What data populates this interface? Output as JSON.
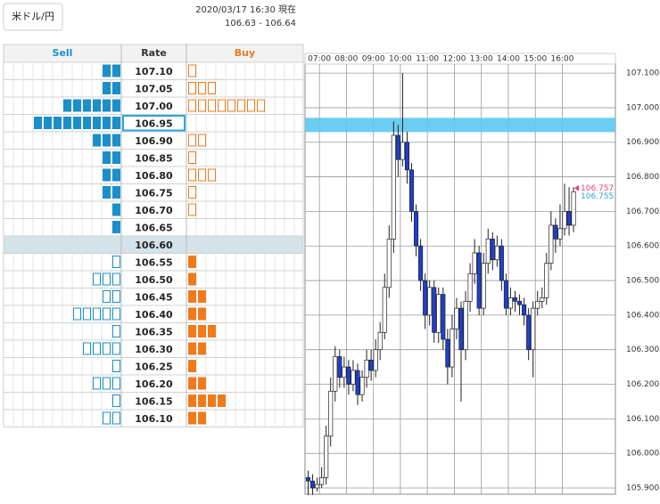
{
  "header": {
    "pair_button": "米ドル/円",
    "timestamp": "2020/03/17 16:30 現在",
    "quote": "106.63 - 106.64"
  },
  "order_book": {
    "columns": [
      "Sell",
      "Rate",
      "Buy"
    ],
    "sell_color": "#1a8fc9",
    "buy_color": "#f07a1a",
    "rows": [
      {
        "rate": "107.10",
        "sell": 2,
        "buy": 1,
        "sell_filled": true,
        "buy_filled": false
      },
      {
        "rate": "107.05",
        "sell": 2,
        "buy": 3,
        "sell_filled": true,
        "buy_filled": false
      },
      {
        "rate": "107.00",
        "sell": 6,
        "buy": 8,
        "sell_filled": true,
        "buy_filled": false
      },
      {
        "rate": "106.95",
        "sell": 9,
        "buy": 0,
        "sell_filled": true,
        "buy_filled": false,
        "highlight": "selected"
      },
      {
        "rate": "106.90",
        "sell": 3,
        "buy": 2,
        "sell_filled": true,
        "buy_filled": false
      },
      {
        "rate": "106.85",
        "sell": 2,
        "buy": 1,
        "sell_filled": true,
        "buy_filled": false
      },
      {
        "rate": "106.80",
        "sell": 2,
        "buy": 3,
        "sell_filled": true,
        "buy_filled": false
      },
      {
        "rate": "106.75",
        "sell": 2,
        "buy": 1,
        "sell_filled": true,
        "buy_filled": false
      },
      {
        "rate": "106.70",
        "sell": 1,
        "buy": 1,
        "sell_filled": true,
        "buy_filled": false
      },
      {
        "rate": "106.65",
        "sell": 1,
        "buy": 0,
        "sell_filled": true,
        "buy_filled": false
      },
      {
        "rate": "106.60",
        "sell": 0,
        "buy": 0,
        "sell_filled": true,
        "buy_filled": false,
        "highlight": "center"
      },
      {
        "rate": "106.55",
        "sell": 1,
        "buy": 1,
        "sell_filled": false,
        "buy_filled": true
      },
      {
        "rate": "106.50",
        "sell": 3,
        "buy": 1,
        "sell_filled": false,
        "buy_filled": true
      },
      {
        "rate": "106.45",
        "sell": 2,
        "buy": 2,
        "sell_filled": false,
        "buy_filled": true
      },
      {
        "rate": "106.40",
        "sell": 5,
        "buy": 2,
        "sell_filled": false,
        "buy_filled": true
      },
      {
        "rate": "106.35",
        "sell": 1,
        "buy": 3,
        "sell_filled": false,
        "buy_filled": true
      },
      {
        "rate": "106.30",
        "sell": 4,
        "buy": 2,
        "sell_filled": false,
        "buy_filled": true
      },
      {
        "rate": "106.25",
        "sell": 1,
        "buy": 1,
        "sell_filled": false,
        "buy_filled": true
      },
      {
        "rate": "106.20",
        "sell": 3,
        "buy": 2,
        "sell_filled": false,
        "buy_filled": true
      },
      {
        "rate": "106.15",
        "sell": 1,
        "buy": 4,
        "sell_filled": false,
        "buy_filled": true
      },
      {
        "rate": "106.10",
        "sell": 2,
        "buy": 2,
        "sell_filled": false,
        "buy_filled": true
      }
    ]
  },
  "chart_data": {
    "type": "candlestick",
    "x": [
      "06:30",
      "06:40",
      "06:50",
      "07:00",
      "07:10",
      "07:20",
      "07:30",
      "07:40",
      "07:50",
      "08:00",
      "08:10",
      "08:20",
      "08:30",
      "08:40",
      "08:50",
      "09:00",
      "09:10",
      "09:20",
      "09:30",
      "09:40",
      "09:50",
      "10:00",
      "10:10",
      "10:20",
      "10:30",
      "10:40",
      "10:50",
      "11:00",
      "11:10",
      "11:20",
      "11:30",
      "11:40",
      "11:50",
      "12:00",
      "12:10",
      "12:20",
      "12:30",
      "12:40",
      "12:50",
      "13:00",
      "13:10",
      "13:20",
      "13:30",
      "13:40",
      "13:50",
      "14:00",
      "14:10",
      "14:20",
      "14:30",
      "14:40",
      "14:50",
      "15:00",
      "15:10",
      "15:20",
      "15:30",
      "15:40",
      "15:50",
      "16:00",
      "16:10",
      "16:20"
    ],
    "open": [
      105.93,
      105.92,
      105.9,
      105.91,
      105.93,
      106.05,
      106.18,
      106.28,
      106.22,
      106.25,
      106.2,
      106.24,
      106.17,
      106.22,
      106.27,
      106.24,
      106.3,
      106.35,
      106.48,
      106.62,
      106.92,
      106.85,
      106.9,
      106.82,
      106.7,
      106.6,
      106.5,
      106.4,
      106.48,
      106.35,
      106.46,
      106.33,
      106.25,
      106.36,
      106.42,
      106.3,
      106.44,
      106.52,
      106.58,
      106.42,
      106.55,
      106.62,
      106.56,
      106.6,
      106.5,
      106.42,
      106.45,
      106.44,
      106.43,
      106.4,
      106.3,
      106.42,
      106.44,
      106.45,
      106.55,
      106.66,
      106.62,
      106.65,
      106.7,
      106.66
    ],
    "high": [
      105.95,
      105.94,
      105.93,
      105.96,
      106.08,
      106.22,
      106.31,
      106.3,
      106.28,
      106.27,
      106.27,
      106.26,
      106.24,
      106.3,
      106.3,
      106.33,
      106.38,
      106.52,
      106.66,
      106.96,
      106.95,
      107.1,
      106.93,
      106.84,
      106.72,
      106.62,
      106.52,
      106.5,
      106.5,
      106.48,
      106.48,
      106.36,
      106.4,
      106.45,
      106.44,
      106.47,
      106.55,
      106.62,
      106.6,
      106.58,
      106.65,
      106.64,
      106.63,
      106.62,
      106.52,
      106.48,
      106.47,
      106.46,
      106.45,
      106.42,
      106.44,
      106.47,
      106.48,
      106.58,
      106.7,
      106.68,
      106.72,
      106.78,
      106.77,
      106.77
    ],
    "low": [
      105.88,
      105.88,
      105.89,
      105.9,
      105.91,
      106.02,
      106.15,
      106.19,
      106.19,
      106.17,
      106.18,
      106.14,
      106.15,
      106.19,
      106.21,
      106.22,
      106.27,
      106.33,
      106.45,
      106.58,
      106.8,
      106.83,
      106.78,
      106.67,
      106.57,
      106.47,
      106.36,
      106.37,
      106.32,
      106.32,
      106.3,
      106.2,
      106.22,
      106.33,
      106.15,
      106.27,
      106.41,
      106.49,
      106.4,
      106.4,
      106.52,
      106.53,
      106.54,
      106.47,
      106.4,
      106.4,
      106.41,
      106.4,
      106.37,
      106.27,
      106.22,
      106.4,
      106.42,
      106.43,
      106.53,
      106.58,
      106.6,
      106.63,
      106.63,
      106.64
    ],
    "close": [
      105.92,
      105.9,
      105.91,
      105.93,
      106.05,
      106.18,
      106.28,
      106.22,
      106.25,
      106.2,
      106.24,
      106.17,
      106.22,
      106.27,
      106.24,
      106.3,
      106.35,
      106.48,
      106.62,
      106.92,
      106.85,
      106.9,
      106.82,
      106.7,
      106.6,
      106.5,
      106.4,
      106.48,
      106.35,
      106.46,
      106.33,
      106.25,
      106.36,
      106.42,
      106.3,
      106.44,
      106.52,
      106.58,
      106.42,
      106.55,
      106.62,
      106.56,
      106.6,
      106.5,
      106.42,
      106.45,
      106.44,
      106.43,
      106.4,
      106.3,
      106.42,
      106.44,
      106.45,
      106.55,
      106.66,
      106.62,
      106.65,
      106.7,
      106.66,
      106.757
    ],
    "up_color": "#ffffff",
    "down_color": "#1f3fcf",
    "xlim": [
      "06:28",
      "17:58"
    ],
    "xticks": [
      "07:00",
      "08:00",
      "09:00",
      "10:00",
      "11:00",
      "12:00",
      "13:00",
      "14:00",
      "15:00",
      "16:00"
    ],
    "ylim": [
      105.882,
      107.126
    ],
    "yticks": [
      {
        "value": 105.9,
        "label": "105.900"
      },
      {
        "value": 106,
        "label": "106.000"
      },
      {
        "value": 106.1,
        "label": "106.100"
      },
      {
        "value": 106.2,
        "label": "106.200"
      },
      {
        "value": 106.3,
        "label": "106.300"
      },
      {
        "value": 106.4,
        "label": "106.400"
      },
      {
        "value": 106.5,
        "label": "106.500"
      },
      {
        "value": 106.6,
        "label": "106.600"
      },
      {
        "value": 106.7,
        "label": "106.700"
      },
      {
        "value": 106.8,
        "label": "106.800"
      },
      {
        "value": 106.9,
        "label": "106.900"
      },
      {
        "value": 107,
        "label": "107.000"
      },
      {
        "value": 107.1,
        "label": "107.100"
      }
    ],
    "grid": true,
    "highlight": 106.95,
    "highlight_color": "#5bc8f0",
    "price_markers": [
      {
        "value": 106.757,
        "color": "#e8407a"
      },
      {
        "value": 106.755,
        "color": "#2aa7d8"
      }
    ]
  }
}
